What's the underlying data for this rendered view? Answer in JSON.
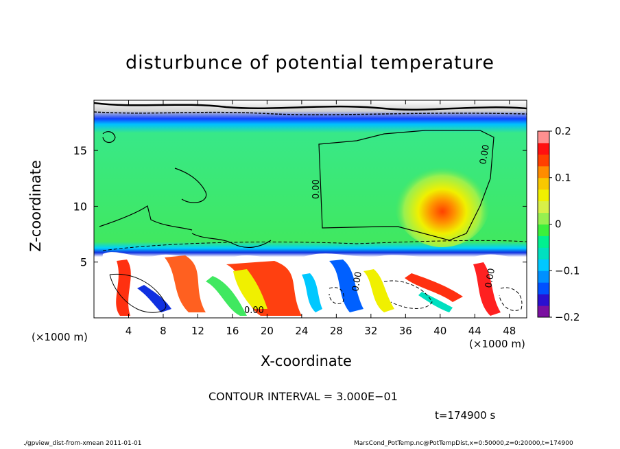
{
  "chart_data": {
    "type": "heatmap",
    "title": "disturbunce of potential temperature",
    "xlabel": "X-coordinate",
    "ylabel": "Z-coordinate",
    "x_unit_left": "(×1000 m)",
    "x_unit_right": "(×1000 m)",
    "xlim": [
      0,
      50
    ],
    "ylim": [
      0,
      19.5
    ],
    "x_ticks": [
      "4",
      "8",
      "12",
      "16",
      "20",
      "24",
      "28",
      "32",
      "36",
      "40",
      "44",
      "48"
    ],
    "x_tick_values": [
      4,
      8,
      12,
      16,
      20,
      24,
      28,
      32,
      36,
      40,
      44,
      48
    ],
    "y_ticks": [
      "5",
      "10",
      "15"
    ],
    "y_tick_values": [
      5,
      10,
      15
    ],
    "colorbar": {
      "range": [
        -0.2,
        0.2
      ],
      "tick_labels": [
        "0.2",
        "0.1",
        "0",
        "−0.1",
        "−0.2"
      ],
      "tick_values": [
        0.2,
        0.1,
        0,
        -0.1,
        -0.2
      ],
      "colors": [
        "#7a10a0",
        "#2a10d0",
        "#0050ff",
        "#0090ff",
        "#00c8ff",
        "#00e0c0",
        "#00f090",
        "#3cf03c",
        "#96f050",
        "#d8f048",
        "#f0f000",
        "#f8c800",
        "#ff8c00",
        "#ff4000",
        "#ff1010",
        "#ff9090"
      ]
    },
    "contour_labels": [
      "0.00",
      "0.00",
      "0.00",
      "0.00",
      "0.00"
    ],
    "contour_interval": "CONTOUR INTERVAL = 3.000E−01",
    "time": "t=174900 s"
  },
  "footer": {
    "left": "./gpview_dist-from-xmean  2011-01-01",
    "right": "MarsCond_PotTemp.nc@PotTempDist,x=0:50000,z=0:20000,t=174900"
  }
}
